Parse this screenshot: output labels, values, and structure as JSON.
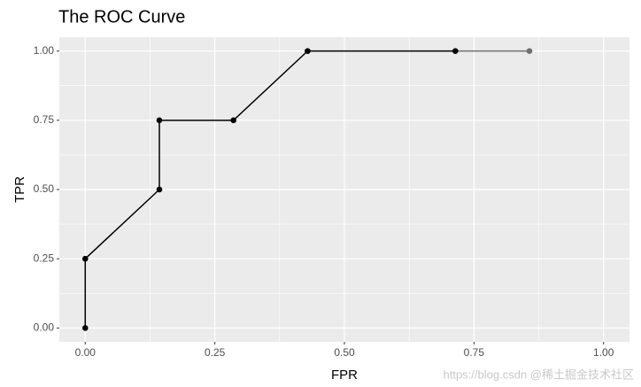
{
  "chart_data": {
    "type": "line",
    "title": "The ROC Curve",
    "x_label": "FPR",
    "y_label": "TPR",
    "x": [
      0,
      0,
      0.143,
      0.143,
      0.286,
      0.429,
      0.714,
      0.857
    ],
    "series": [
      {
        "name": "ROC",
        "color": "#000000",
        "point_colors": [
          "#000000",
          "#000000",
          "#000000",
          "#000000",
          "#000000",
          "#000000",
          "#000000",
          "#707070"
        ],
        "values": [
          0,
          0.25,
          0.5,
          0.75,
          0.75,
          1,
          1,
          1
        ]
      }
    ],
    "xlim": [
      -0.05,
      1.05
    ],
    "ylim": [
      -0.05,
      1.05
    ],
    "xticks": [
      {
        "value": 0,
        "label": "0.00"
      },
      {
        "value": 0.25,
        "label": "0.25"
      },
      {
        "value": 0.5,
        "label": "0.50"
      },
      {
        "value": 0.75,
        "label": "0.75"
      },
      {
        "value": 1,
        "label": "1.00"
      }
    ],
    "yticks": [
      {
        "value": 0,
        "label": "0.00"
      },
      {
        "value": 0.25,
        "label": "0.25"
      },
      {
        "value": 0.5,
        "label": "0.50"
      },
      {
        "value": 0.75,
        "label": "0.75"
      },
      {
        "value": 1,
        "label": "1.00"
      }
    ],
    "grid": true,
    "minor_grid": true,
    "watermark": "https://blog.csdn @稀土掘金技术社区"
  }
}
